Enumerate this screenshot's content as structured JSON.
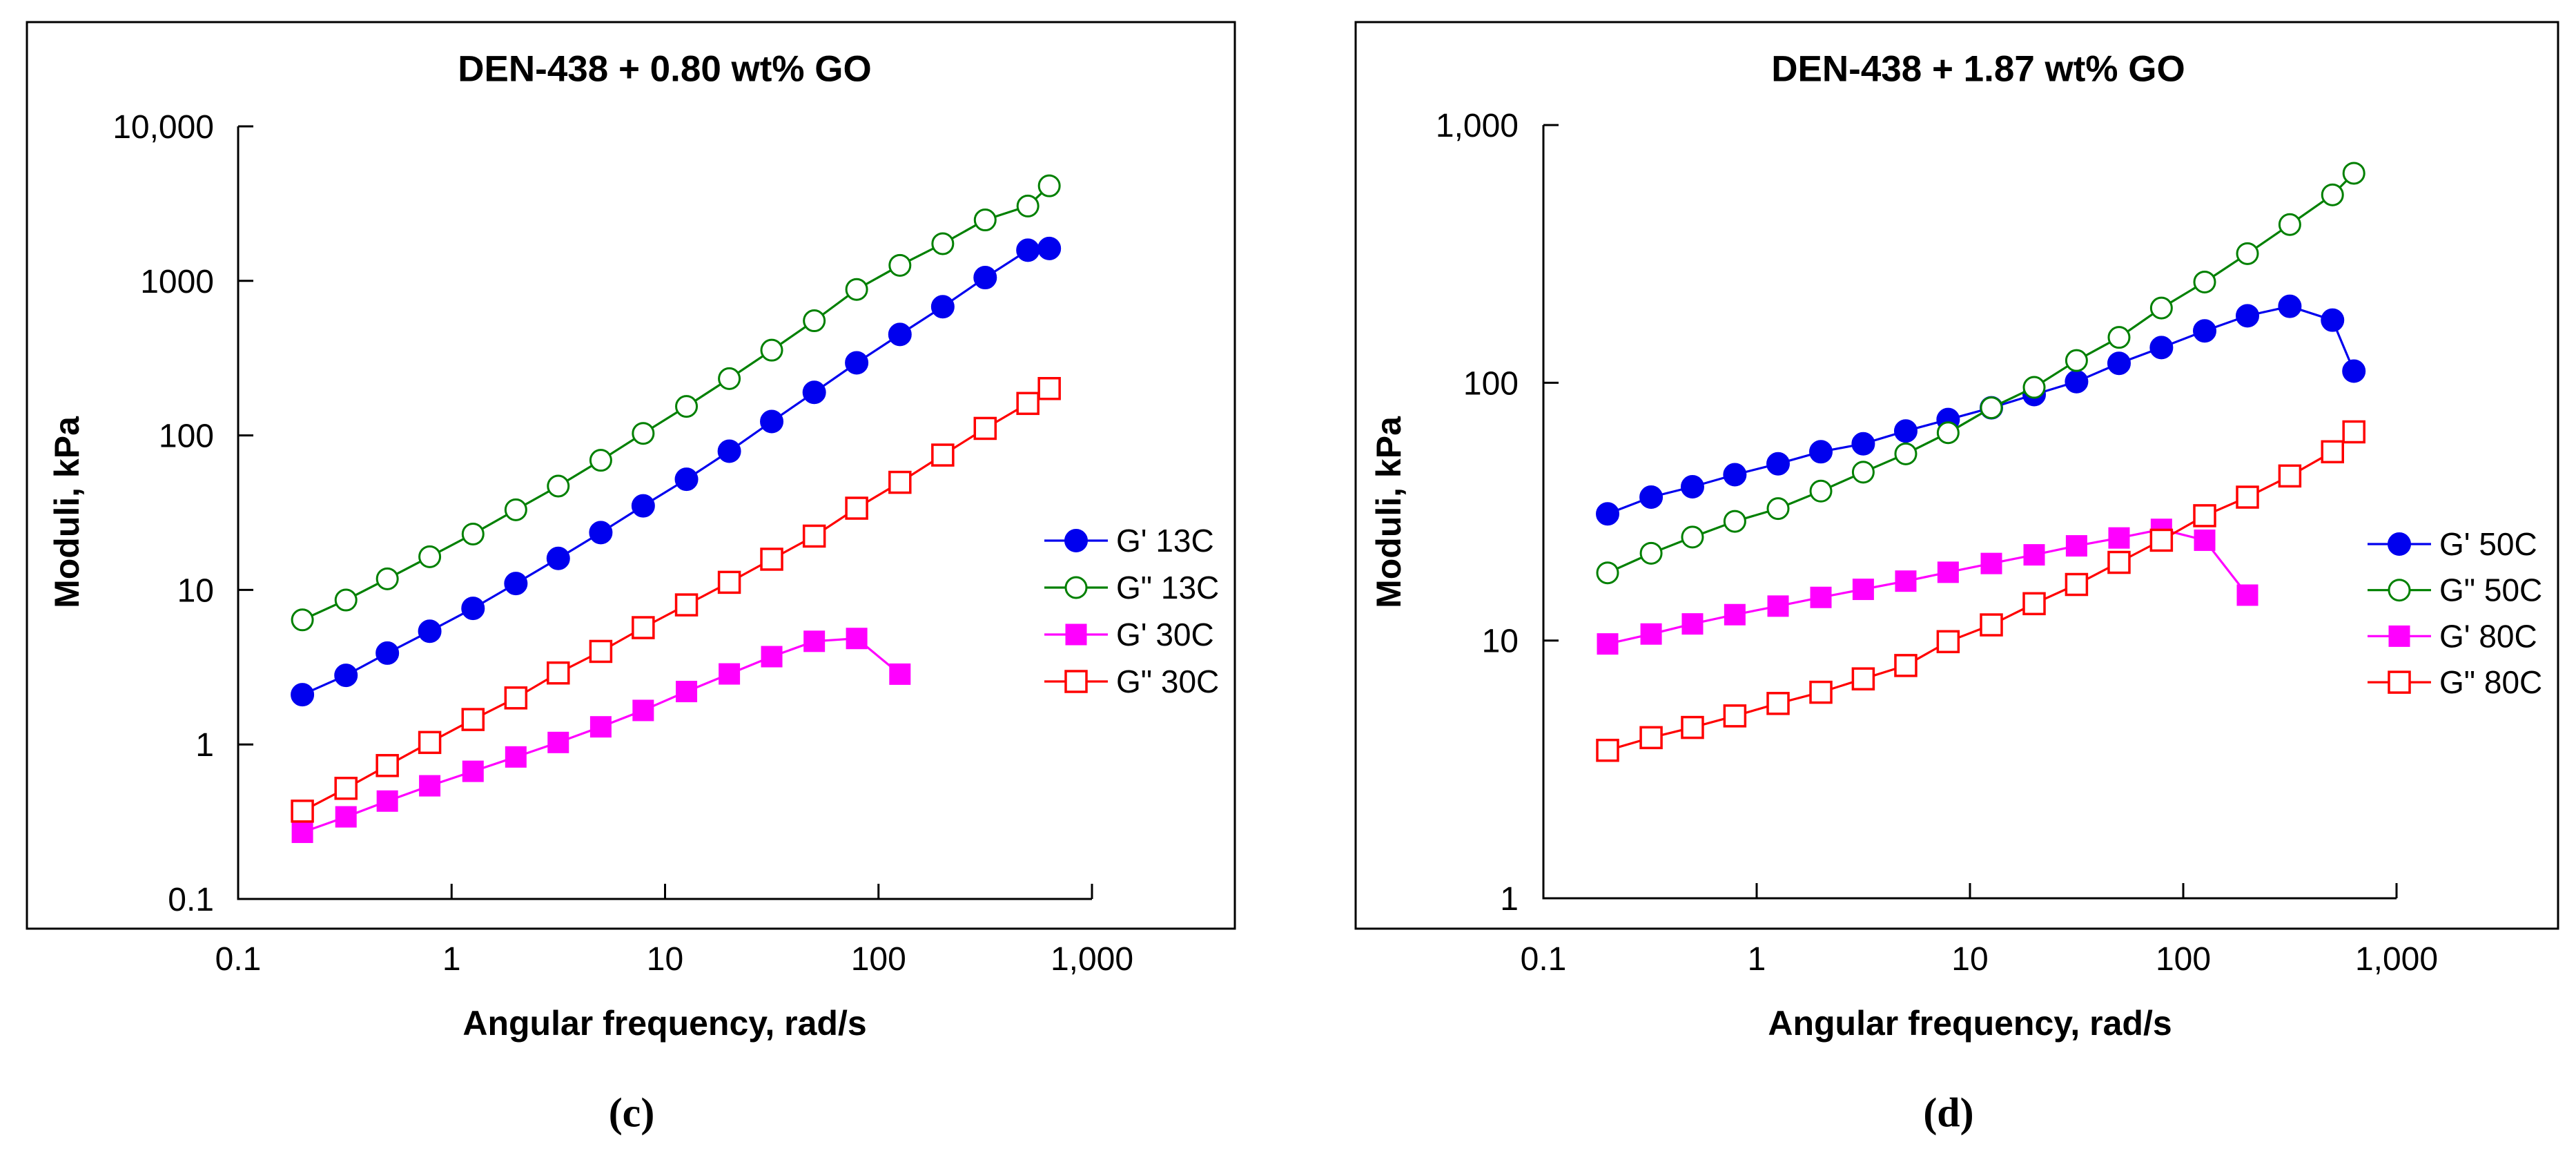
{
  "figure": {
    "panel_captions": [
      "(c)",
      "(d)"
    ]
  },
  "chart_data": [
    {
      "type": "line",
      "title": "DEN-438 + 0.80 wt% GO",
      "xlabel": "Angular frequency, rad/s",
      "ylabel": "Moduli, kPa",
      "x_scale": "log",
      "y_scale": "log",
      "xlim": [
        0.1,
        1000
      ],
      "ylim": [
        0.1,
        10000
      ],
      "grid": false,
      "legend_position": "right-middle",
      "x_ticks": [
        0.1,
        1,
        10,
        100,
        1000
      ],
      "x_tick_labels": [
        "0.1",
        "1",
        "10",
        "100",
        "1,000"
      ],
      "y_ticks": [
        10000,
        1000,
        100,
        10,
        1,
        0.1
      ],
      "y_tick_labels": [
        "10,000",
        "1000",
        "100",
        "10",
        "1",
        "0.1"
      ],
      "x": [
        0.2,
        0.32,
        0.5,
        0.79,
        1.26,
        2,
        3.16,
        5,
        7.9,
        12.6,
        20,
        31.6,
        50,
        79,
        126,
        200,
        316,
        501,
        631
      ],
      "series": [
        {
          "name": "G' 13C",
          "color": "#0000ee",
          "marker": "circle-filled",
          "values": [
            2.1,
            2.8,
            3.9,
            5.4,
            7.6,
            11,
            16,
            23.5,
            35,
            52,
            79,
            123,
            190,
            295,
            450,
            680,
            1050,
            1580,
            1620
          ]
        },
        {
          "name": "G\" 13C",
          "color": "#008000",
          "marker": "circle-open",
          "values": [
            6.4,
            8.6,
            11.8,
            16.4,
            23,
            33,
            47,
            69,
            103,
            154,
            233,
            356,
            552,
            880,
            1260,
            1740,
            2480,
            3050,
            4120
          ]
        },
        {
          "name": "G' 30C",
          "color": "#ff00ff",
          "marker": "square-filled",
          "values": [
            0.27,
            0.34,
            0.43,
            0.54,
            0.67,
            0.83,
            1.03,
            1.3,
            1.66,
            2.2,
            2.86,
            3.7,
            4.65,
            4.85,
            2.85
          ]
        },
        {
          "name": "G\" 30C",
          "color": "#ff0000",
          "marker": "square-open",
          "values": [
            0.37,
            0.52,
            0.73,
            1.03,
            1.45,
            2.0,
            2.9,
            4.0,
            5.7,
            8.0,
            11.2,
            15.8,
            22.3,
            33.8,
            49.7,
            74.6,
            111,
            161,
            201
          ]
        }
      ]
    },
    {
      "type": "line",
      "title": "DEN-438 + 1.87 wt% GO",
      "xlabel": "Angular frequency, rad/s",
      "ylabel": "Moduli, kPa",
      "x_scale": "log",
      "y_scale": "log",
      "xlim": [
        0.1,
        1000
      ],
      "ylim": [
        1,
        1000
      ],
      "grid": false,
      "legend_position": "right-middle",
      "x_ticks": [
        0.1,
        1,
        10,
        100,
        1000
      ],
      "x_tick_labels": [
        "0.1",
        "1",
        "10",
        "100",
        "1,000"
      ],
      "y_ticks": [
        1000,
        100,
        10,
        1
      ],
      "y_tick_labels": [
        "1,000",
        "100",
        "10",
        "1"
      ],
      "x": [
        0.2,
        0.32,
        0.5,
        0.79,
        1.26,
        2,
        3.16,
        5,
        7.9,
        12.6,
        20,
        31.6,
        50,
        79,
        126,
        200,
        316,
        501,
        631
      ],
      "series": [
        {
          "name": "G' 50C",
          "color": "#0000ee",
          "marker": "circle-filled",
          "values": [
            31,
            36,
            39.5,
            44,
            48.5,
            54,
            58,
            65,
            72,
            80,
            90,
            101,
            119,
            137,
            159,
            182,
            198,
            175,
            111
          ]
        },
        {
          "name": "G\" 50C",
          "color": "#008000",
          "marker": "circle-open",
          "values": [
            18.3,
            21.8,
            25.2,
            29,
            32.5,
            38,
            45,
            53,
            64,
            80,
            96,
            122,
            150,
            195,
            246,
            317,
            411,
            536,
            650
          ]
        },
        {
          "name": "G' 80C",
          "color": "#ff00ff",
          "marker": "square-filled",
          "values": [
            9.7,
            10.6,
            11.6,
            12.6,
            13.6,
            14.7,
            15.8,
            17,
            18.4,
            19.9,
            21.5,
            23.3,
            25,
            27,
            24.5,
            15
          ]
        },
        {
          "name": "G\" 80C",
          "color": "#ff0000",
          "marker": "square-open",
          "values": [
            3.75,
            4.2,
            4.6,
            5.1,
            5.7,
            6.3,
            7.1,
            8.0,
            9.9,
            11.5,
            13.9,
            16.5,
            20.1,
            24.5,
            30.5,
            36,
            43.5,
            54,
            64.5
          ]
        }
      ]
    }
  ]
}
